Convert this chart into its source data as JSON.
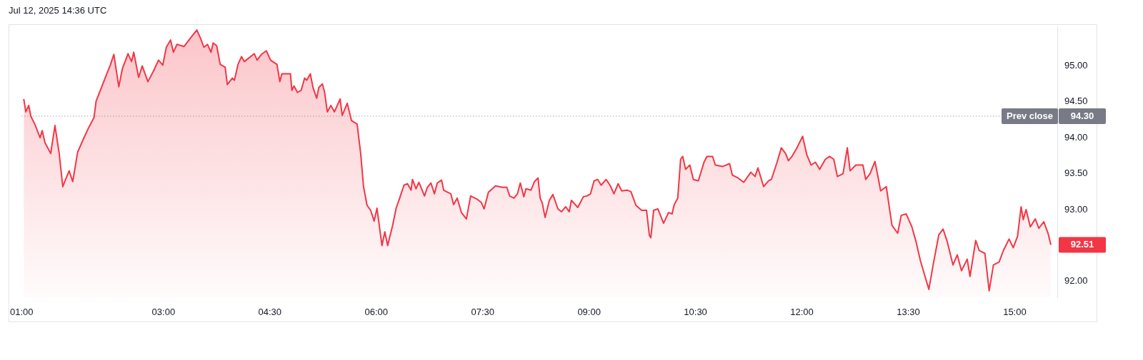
{
  "chart_data": {
    "type": "area",
    "annotations": [
      "Jul 12, 2025 14:36 UTC",
      "94.30",
      "92.51"
    ],
    "xlim": [
      1,
      15.6
    ],
    "xticks": [
      {
        "value": 1,
        "label": "01:00"
      },
      {
        "value": 3,
        "label": "03:00"
      },
      {
        "value": 4.5,
        "label": "04:30"
      },
      {
        "value": 6,
        "label": "06:00"
      },
      {
        "value": 7.5,
        "label": "07:30"
      },
      {
        "value": 9,
        "label": "09:00"
      },
      {
        "value": 10.5,
        "label": "10:30"
      },
      {
        "value": 12,
        "label": "12:00"
      },
      {
        "value": 13.5,
        "label": "13:30"
      },
      {
        "value": 15,
        "label": "15:00"
      }
    ],
    "ylim": [
      91.78,
      95.55
    ],
    "yticks": [
      {
        "value": 92,
        "label": "92.00"
      },
      {
        "value": 93,
        "label": "93.00"
      },
      {
        "value": 93.5,
        "label": "93.50"
      },
      {
        "value": 94,
        "label": "94.00"
      },
      {
        "value": 94.5,
        "label": "94.50"
      },
      {
        "value": 95,
        "label": "95.00"
      }
    ],
    "grid": false,
    "legend": false,
    "marker": "none",
    "line_style": "solid",
    "ref_lines": [
      {
        "axis": "y",
        "value": 94.3,
        "label": "Prev close",
        "color": "#787b86",
        "line_style": "dotted"
      }
    ],
    "series": [
      {
        "color": "#f23645",
        "x": [
          1.03,
          1.06,
          1.1,
          1.13,
          1.19,
          1.26,
          1.29,
          1.33,
          1.41,
          1.47,
          1.53,
          1.58,
          1.62,
          1.67,
          1.72,
          1.79,
          1.87,
          1.94,
          2.02,
          2.05,
          2.13,
          2.2,
          2.25,
          2.3,
          2.37,
          2.42,
          2.5,
          2.55,
          2.58,
          2.65,
          2.7,
          2.78,
          2.86,
          2.93,
          2.99,
          3.04,
          3.1,
          3.14,
          3.19,
          3.29,
          3.39,
          3.47,
          3.52,
          3.57,
          3.62,
          3.67,
          3.7,
          3.75,
          3.8,
          3.87,
          3.9,
          3.97,
          4.0,
          4.05,
          4.1,
          4.14,
          4.28,
          4.32,
          4.38,
          4.45,
          4.51,
          4.6,
          4.64,
          4.67,
          4.79,
          4.81,
          4.84,
          4.89,
          4.94,
          4.99,
          5.02,
          5.07,
          5.11,
          5.16,
          5.19,
          5.24,
          5.27,
          5.31,
          5.36,
          5.41,
          5.49,
          5.52,
          5.59,
          5.65,
          5.73,
          5.78,
          5.82,
          5.87,
          5.92,
          5.97,
          6.01,
          6.08,
          6.12,
          6.16,
          6.23,
          6.28,
          6.33,
          6.39,
          6.44,
          6.49,
          6.51,
          6.56,
          6.6,
          6.68,
          6.72,
          6.77,
          6.82,
          6.86,
          6.92,
          6.95,
          7.05,
          7.09,
          7.14,
          7.2,
          7.27,
          7.33,
          7.43,
          7.48,
          7.52,
          7.58,
          7.68,
          7.78,
          7.84,
          7.88,
          7.94,
          7.99,
          8.03,
          8.08,
          8.11,
          8.18,
          8.23,
          8.28,
          8.31,
          8.34,
          8.38,
          8.44,
          8.49,
          8.56,
          8.61,
          8.67,
          8.72,
          8.75,
          8.84,
          8.92,
          8.97,
          9.02,
          9.07,
          9.12,
          9.17,
          9.24,
          9.3,
          9.35,
          9.41,
          9.46,
          9.54,
          9.59,
          9.66,
          9.74,
          9.81,
          9.85,
          9.87,
          9.91,
          9.97,
          10.05,
          10.12,
          10.17,
          10.2,
          10.25,
          10.29,
          10.32,
          10.36,
          10.42,
          10.47,
          10.54,
          10.62,
          10.66,
          10.74,
          10.78,
          10.88,
          10.98,
          11.02,
          11.1,
          11.18,
          11.28,
          11.34,
          11.38,
          11.46,
          11.53,
          11.57,
          11.65,
          11.71,
          11.77,
          11.81,
          11.86,
          11.93,
          12.01,
          12.07,
          12.13,
          12.19,
          12.25,
          12.33,
          12.39,
          12.45,
          12.5,
          12.58,
          12.64,
          12.68,
          12.76,
          12.86,
          12.9,
          12.96,
          13.03,
          13.08,
          13.11,
          13.19,
          13.24,
          13.27,
          13.35,
          13.4,
          13.47,
          13.55,
          13.61,
          13.67,
          13.75,
          13.79,
          13.85,
          13.93,
          13.99,
          14.05,
          14.13,
          14.19,
          14.25,
          14.33,
          14.37,
          14.45,
          14.5,
          14.58,
          14.64,
          14.7,
          14.78,
          14.84,
          14.92,
          14.98,
          15.04,
          15.09,
          15.12,
          15.16,
          15.22,
          15.29,
          15.34,
          15.41,
          15.47,
          15.51
        ],
        "values": [
          94.54,
          94.36,
          94.45,
          94.3,
          94.18,
          94.0,
          94.1,
          93.93,
          93.78,
          94.17,
          93.78,
          93.32,
          93.42,
          93.54,
          93.39,
          93.8,
          93.98,
          94.13,
          94.28,
          94.51,
          94.71,
          94.89,
          95.01,
          95.16,
          94.71,
          94.96,
          95.17,
          95.06,
          95.19,
          94.84,
          95.0,
          94.78,
          94.93,
          95.08,
          95.01,
          95.26,
          95.36,
          95.19,
          95.3,
          95.27,
          95.4,
          95.5,
          95.39,
          95.26,
          95.3,
          95.19,
          95.32,
          95.28,
          95.02,
          94.98,
          94.74,
          94.83,
          94.8,
          95.02,
          95.13,
          95.06,
          95.17,
          95.08,
          95.16,
          95.21,
          95.08,
          95.02,
          94.78,
          94.89,
          94.89,
          94.66,
          94.72,
          94.63,
          94.66,
          94.83,
          94.8,
          94.89,
          94.69,
          94.55,
          94.7,
          94.75,
          94.64,
          94.36,
          94.45,
          94.36,
          94.54,
          94.31,
          94.48,
          94.24,
          94.19,
          93.78,
          93.32,
          93.06,
          92.99,
          92.84,
          93.02,
          92.5,
          92.69,
          92.5,
          92.78,
          93.02,
          93.16,
          93.34,
          93.36,
          93.27,
          93.42,
          93.29,
          93.38,
          93.19,
          93.31,
          93.37,
          93.22,
          93.37,
          93.41,
          93.27,
          93.22,
          93.07,
          93.16,
          92.96,
          92.87,
          93.19,
          93.14,
          93.1,
          93.01,
          93.24,
          93.33,
          93.31,
          93.31,
          93.19,
          93.16,
          93.22,
          93.37,
          93.18,
          93.29,
          93.27,
          93.39,
          93.44,
          93.16,
          93.09,
          92.89,
          93.13,
          93.21,
          93.01,
          92.97,
          93.04,
          92.97,
          93.13,
          93.03,
          93.18,
          93.19,
          93.22,
          93.4,
          93.42,
          93.34,
          93.42,
          93.33,
          93.22,
          93.36,
          93.26,
          93.27,
          93.25,
          93.06,
          92.99,
          92.99,
          92.64,
          92.61,
          92.99,
          93.01,
          92.81,
          92.96,
          92.94,
          93.07,
          93.16,
          93.7,
          93.74,
          93.56,
          93.62,
          93.42,
          93.4,
          93.66,
          93.74,
          93.74,
          93.62,
          93.6,
          93.64,
          93.48,
          93.44,
          93.38,
          93.52,
          93.46,
          93.58,
          93.32,
          93.4,
          93.42,
          93.66,
          93.86,
          93.78,
          93.68,
          93.74,
          93.86,
          94.02,
          93.76,
          93.62,
          93.66,
          93.56,
          93.7,
          93.74,
          93.7,
          93.46,
          93.5,
          93.86,
          93.54,
          93.62,
          93.62,
          93.42,
          93.5,
          93.67,
          93.42,
          93.26,
          93.32,
          92.98,
          92.78,
          92.67,
          92.92,
          92.94,
          92.76,
          92.55,
          92.29,
          92.02,
          91.89,
          92.23,
          92.65,
          92.73,
          92.55,
          92.23,
          92.37,
          92.15,
          92.31,
          92.07,
          92.57,
          92.43,
          92.39,
          91.87,
          92.23,
          92.27,
          92.43,
          92.59,
          92.47,
          92.63,
          93.04,
          92.86,
          93.0,
          92.76,
          92.87,
          92.74,
          92.83,
          92.67,
          92.51
        ]
      }
    ]
  }
}
